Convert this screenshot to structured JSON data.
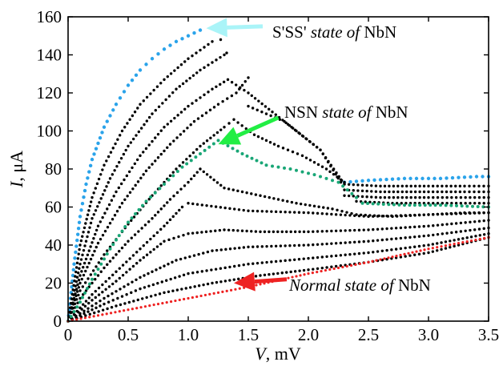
{
  "chart_data": {
    "type": "scatter",
    "title": "",
    "xlabel": {
      "var": "V",
      "unit": ", mV"
    },
    "ylabel": {
      "var": "I",
      "unit": ", μA"
    },
    "xlim": [
      0,
      3.5
    ],
    "ylim": [
      0,
      160
    ],
    "xticks": [
      0,
      0.5,
      1.0,
      1.5,
      2.0,
      2.5,
      3.0,
      3.5
    ],
    "xtick_labels": [
      "0",
      "0.5",
      "1.0",
      "1.5",
      "2.0",
      "2.5",
      "3.0",
      "3.5"
    ],
    "yticks": [
      0,
      20,
      40,
      60,
      80,
      100,
      120,
      140,
      160
    ],
    "ytick_labels": [
      "0",
      "20",
      "40",
      "60",
      "80",
      "100",
      "120",
      "140",
      "160"
    ],
    "grid": false,
    "annotations": [
      {
        "id": "sss",
        "text_parts": [
          {
            "t": "S'SS' ",
            "i": false
          },
          {
            "t": "state of",
            "i": true
          },
          {
            "t": " NbN",
            "i": false
          }
        ],
        "arrow_color": "#aaf4f8",
        "arrow_tip": [
          1.15,
          154
        ],
        "arrow_tail": [
          1.62,
          155
        ],
        "text_at": [
          1.7,
          149
        ]
      },
      {
        "id": "nsn",
        "text_parts": [
          {
            "t": "NSN ",
            "i": false
          },
          {
            "t": "state of",
            "i": true
          },
          {
            "t": " NbN",
            "i": false
          }
        ],
        "arrow_color": "#22ee44",
        "arrow_tip": [
          1.25,
          93
        ],
        "arrow_tail": [
          1.75,
          107
        ],
        "text_at": [
          1.8,
          107
        ]
      },
      {
        "id": "normal",
        "text_parts": [
          {
            "t": "Normal state of",
            "i": true
          },
          {
            "t": " NbN",
            "i": false
          }
        ],
        "arrow_color": "#ee2222",
        "arrow_tip": [
          1.38,
          20
        ],
        "arrow_tail": [
          1.82,
          22
        ],
        "text_at": [
          1.84,
          16
        ]
      }
    ],
    "series": [
      {
        "color": "#2aa3ea",
        "size": 2.2,
        "points": [
          [
            0,
            0
          ],
          [
            0.05,
            30
          ],
          [
            0.1,
            55
          ],
          [
            0.15,
            72
          ],
          [
            0.2,
            85
          ],
          [
            0.3,
            102
          ],
          [
            0.4,
            114
          ],
          [
            0.5,
            124
          ],
          [
            0.6,
            132
          ],
          [
            0.7,
            138
          ],
          [
            0.8,
            143
          ],
          [
            0.9,
            147
          ],
          [
            1.0,
            150
          ],
          [
            1.1,
            153
          ]
        ]
      },
      {
        "color": "#2aa3ea",
        "size": 2.2,
        "points": [
          [
            2.3,
            73
          ],
          [
            2.5,
            74
          ],
          [
            2.8,
            75
          ],
          [
            3.1,
            75
          ],
          [
            3.4,
            76
          ],
          [
            3.5,
            76
          ]
        ]
      },
      {
        "color": "#000000",
        "size": 1.7,
        "points": [
          [
            0,
            0
          ],
          [
            0.1,
            40
          ],
          [
            0.2,
            65
          ],
          [
            0.3,
            82
          ],
          [
            0.45,
            100
          ],
          [
            0.6,
            114
          ],
          [
            0.8,
            127
          ],
          [
            1.0,
            138
          ],
          [
            1.2,
            147
          ],
          [
            1.27,
            148
          ]
        ]
      },
      {
        "color": "#000000",
        "size": 1.7,
        "points": [
          [
            0,
            0
          ],
          [
            0.1,
            30
          ],
          [
            0.2,
            54
          ],
          [
            0.35,
            75
          ],
          [
            0.5,
            92
          ],
          [
            0.7,
            109
          ],
          [
            0.9,
            122
          ],
          [
            1.1,
            132
          ],
          [
            1.3,
            140
          ],
          [
            1.32,
            141
          ]
        ]
      },
      {
        "color": "#000000",
        "size": 1.7,
        "points": [
          [
            0,
            0
          ],
          [
            0.1,
            24
          ],
          [
            0.25,
            50
          ],
          [
            0.4,
            68
          ],
          [
            0.6,
            87
          ],
          [
            0.8,
            102
          ],
          [
            1.0,
            113
          ],
          [
            1.2,
            122
          ],
          [
            1.33,
            127
          ],
          [
            1.5,
            120
          ],
          [
            1.7,
            110
          ],
          [
            1.9,
            100
          ],
          [
            2.1,
            90
          ],
          [
            2.27,
            73
          ]
        ]
      },
      {
        "color": "#000000",
        "size": 1.7,
        "points": [
          [
            0,
            0
          ],
          [
            0.1,
            20
          ],
          [
            0.25,
            41
          ],
          [
            0.45,
            62
          ],
          [
            0.65,
            79
          ],
          [
            0.85,
            93
          ],
          [
            1.05,
            105
          ],
          [
            1.25,
            114
          ],
          [
            1.4,
            120
          ],
          [
            1.5,
            128
          ]
        ]
      },
      {
        "color": "#000000",
        "size": 1.7,
        "points": [
          [
            0,
            0
          ],
          [
            0.1,
            16
          ],
          [
            0.3,
            35
          ],
          [
            0.5,
            51
          ],
          [
            0.7,
            66
          ],
          [
            0.9,
            80
          ],
          [
            1.1,
            92
          ],
          [
            1.3,
            102
          ],
          [
            1.38,
            106
          ],
          [
            1.55,
            98
          ],
          [
            1.75,
            92
          ],
          [
            1.95,
            87
          ],
          [
            2.15,
            80
          ],
          [
            2.3,
            73
          ]
        ]
      },
      {
        "color": "#000000",
        "size": 1.7,
        "points": [
          [
            0,
            0
          ],
          [
            0.1,
            12
          ],
          [
            0.3,
            28
          ],
          [
            0.5,
            42
          ],
          [
            0.7,
            54
          ],
          [
            0.85,
            64
          ],
          [
            1.0,
            73
          ],
          [
            1.1,
            80
          ],
          [
            1.3,
            70
          ],
          [
            1.6,
            66
          ],
          [
            1.9,
            62
          ],
          [
            2.2,
            59
          ],
          [
            2.4,
            56
          ],
          [
            2.7,
            55
          ],
          [
            3.0,
            56
          ],
          [
            3.3,
            57
          ],
          [
            3.5,
            57
          ]
        ]
      },
      {
        "color": "#000000",
        "size": 1.7,
        "points": [
          [
            0,
            0
          ],
          [
            0.2,
            14
          ],
          [
            0.4,
            26
          ],
          [
            0.6,
            38
          ],
          [
            0.8,
            50
          ],
          [
            0.95,
            60
          ],
          [
            1.0,
            62
          ],
          [
            1.5,
            58
          ],
          [
            2.0,
            57
          ],
          [
            2.5,
            55
          ],
          [
            3.0,
            56
          ],
          [
            3.5,
            57
          ]
        ]
      },
      {
        "color": "#000000",
        "size": 1.7,
        "points": [
          [
            0,
            0
          ],
          [
            0.2,
            11
          ],
          [
            0.4,
            21
          ],
          [
            0.6,
            32
          ],
          [
            0.8,
            42
          ],
          [
            1.0,
            46
          ],
          [
            1.3,
            48
          ],
          [
            1.6,
            47
          ],
          [
            2.0,
            47
          ],
          [
            2.5,
            48
          ],
          [
            3.0,
            50
          ],
          [
            3.5,
            53
          ]
        ]
      },
      {
        "color": "#000000",
        "size": 1.7,
        "points": [
          [
            0,
            0
          ],
          [
            0.3,
            12
          ],
          [
            0.6,
            23
          ],
          [
            0.9,
            32
          ],
          [
            1.2,
            37
          ],
          [
            1.5,
            39
          ],
          [
            2.0,
            40
          ],
          [
            2.5,
            42
          ],
          [
            3.0,
            45
          ],
          [
            3.5,
            49
          ]
        ]
      },
      {
        "color": "#000000",
        "size": 1.7,
        "points": [
          [
            0,
            0
          ],
          [
            0.3,
            9
          ],
          [
            0.6,
            17
          ],
          [
            1.0,
            25
          ],
          [
            1.5,
            30
          ],
          [
            2.0,
            33
          ],
          [
            2.5,
            36
          ],
          [
            3.0,
            40
          ],
          [
            3.5,
            46
          ]
        ]
      },
      {
        "color": "#000000",
        "size": 1.7,
        "points": [
          [
            0,
            0
          ],
          [
            0.4,
            8
          ],
          [
            0.8,
            15
          ],
          [
            1.2,
            20
          ],
          [
            1.6,
            24
          ],
          [
            2.0,
            27
          ],
          [
            2.5,
            31
          ],
          [
            3.0,
            36
          ],
          [
            3.5,
            44
          ]
        ]
      },
      {
        "color": "#000000",
        "size": 1.7,
        "points": [
          [
            2.3,
            72
          ],
          [
            2.6,
            71
          ],
          [
            3.0,
            71
          ],
          [
            3.3,
            71
          ],
          [
            3.5,
            71
          ]
        ]
      },
      {
        "color": "#000000",
        "size": 1.7,
        "points": [
          [
            2.3,
            69
          ],
          [
            2.6,
            68
          ],
          [
            3.0,
            68
          ],
          [
            3.3,
            68
          ],
          [
            3.5,
            68
          ]
        ]
      },
      {
        "color": "#000000",
        "size": 1.7,
        "points": [
          [
            2.3,
            66
          ],
          [
            2.6,
            65
          ],
          [
            3.0,
            65
          ],
          [
            3.5,
            65
          ]
        ]
      },
      {
        "color": "#000000",
        "size": 1.7,
        "points": [
          [
            2.4,
            63
          ],
          [
            2.7,
            62
          ],
          [
            3.0,
            62
          ],
          [
            3.5,
            62
          ]
        ]
      },
      {
        "color": "#000000",
        "size": 1.7,
        "points": [
          [
            1.5,
            113
          ],
          [
            1.8,
            105
          ],
          [
            2.1,
            90
          ],
          [
            2.3,
            72
          ]
        ]
      },
      {
        "color": "#19a676",
        "size": 2.0,
        "points": [
          [
            0,
            0
          ],
          [
            0.1,
            10
          ],
          [
            0.2,
            22
          ],
          [
            0.35,
            38
          ],
          [
            0.5,
            52
          ],
          [
            0.65,
            63
          ],
          [
            0.8,
            72
          ],
          [
            0.95,
            81
          ],
          [
            1.1,
            88
          ],
          [
            1.25,
            95
          ],
          [
            1.45,
            88
          ],
          [
            1.65,
            82
          ],
          [
            1.85,
            80
          ],
          [
            2.05,
            77
          ],
          [
            2.25,
            73
          ],
          [
            2.4,
            65
          ],
          [
            2.45,
            62
          ],
          [
            2.8,
            61
          ],
          [
            3.1,
            61
          ],
          [
            3.5,
            60
          ]
        ]
      },
      {
        "color": "#ee2222",
        "size": 1.6,
        "points": [
          [
            0,
            0
          ],
          [
            0.5,
            6
          ],
          [
            1.0,
            12
          ],
          [
            1.5,
            18
          ],
          [
            2.0,
            25
          ],
          [
            2.5,
            31
          ],
          [
            3.0,
            38
          ],
          [
            3.5,
            44
          ]
        ]
      }
    ]
  }
}
